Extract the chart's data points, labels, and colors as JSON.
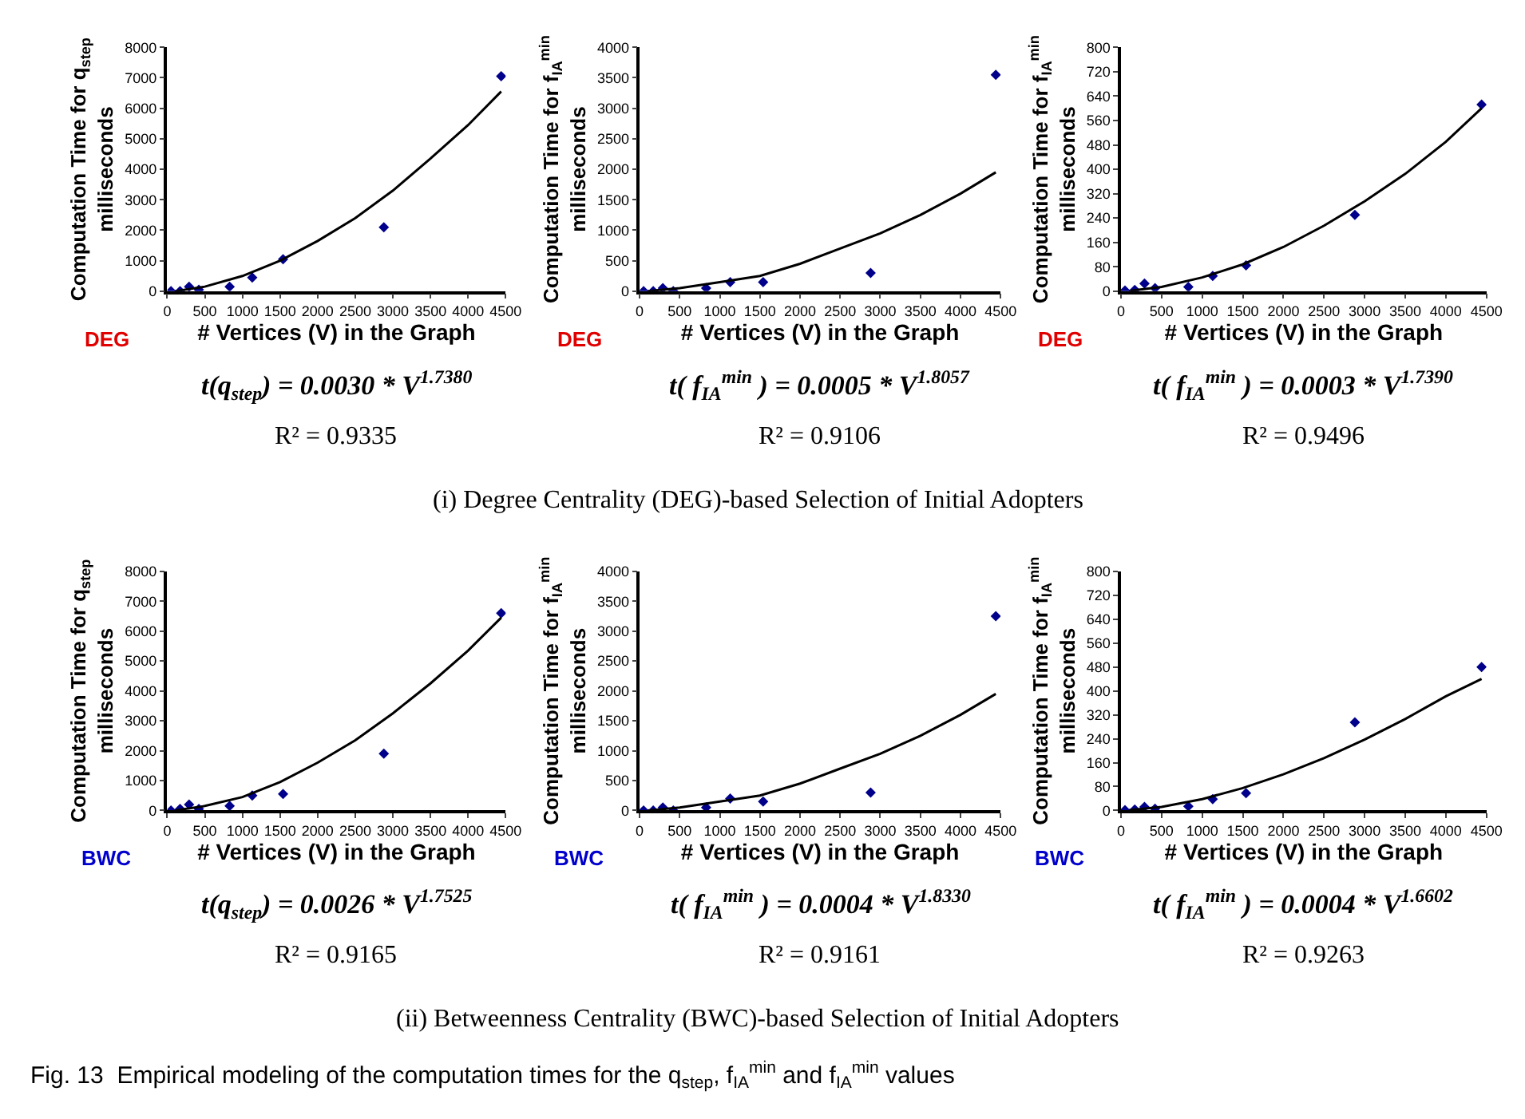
{
  "chart_data": [
    {
      "type": "scatter",
      "ylabel": "Computation Time for q$_{step}$\nmilliseconds",
      "xlabel": "# Vertices (V) in the Graph",
      "xlim": [
        0,
        4500
      ],
      "xticks": [
        0,
        500,
        1000,
        1500,
        2000,
        2500,
        3000,
        3500,
        4000,
        4500
      ],
      "ylim": [
        0,
        8000
      ],
      "yticks": [
        0,
        1000,
        2000,
        3000,
        4000,
        5000,
        6000,
        7000,
        8000
      ],
      "marker": "diamond",
      "annotations": [
        "DEG",
        "t(q$_{step}$) = 0.0030 * V$^{1.7380}$",
        "R² = 0.9335"
      ],
      "series": [
        {
          "color": "#00008b",
          "x": [
            50,
            170,
            290,
            420,
            830,
            1130,
            1540,
            2880,
            4440
          ],
          "values": [
            0,
            0,
            150,
            50,
            150,
            450,
            1050,
            2100,
            7050
          ]
        },
        {
          "type": "line",
          "color": "#000000",
          "marker": "none",
          "line_style": "solid",
          "x": [
            100,
            500,
            1000,
            1500,
            2000,
            2500,
            3000,
            3500,
            4000,
            4440
          ],
          "values": [
            0,
            150,
            500,
            1000,
            1650,
            2400,
            3300,
            4350,
            5450,
            6550
          ]
        }
      ]
    },
    {
      "type": "scatter",
      "ylabel": "Computation Time for f$_{IA}$$^{min}$\nmilliseconds",
      "xlabel": "# Vertices (V) in the Graph",
      "xlim": [
        0,
        4500
      ],
      "xticks": [
        0,
        500,
        1000,
        1500,
        2000,
        2500,
        3000,
        3500,
        4000,
        4500
      ],
      "ylim": [
        0,
        4000
      ],
      "yticks": [
        0,
        500,
        1000,
        1500,
        2000,
        2500,
        3000,
        3500,
        4000
      ],
      "marker": "diamond",
      "annotations": [
        "DEG",
        "t( f$_{IA}$$^{min}$ ) = 0.0005 * V$^{1.8057}$",
        "R² = 0.9106",
        "(i) Degree Centrality (DEG)-based Selection of Initial Adopters"
      ],
      "series": [
        {
          "color": "#00008b",
          "x": [
            50,
            170,
            290,
            420,
            830,
            1130,
            1540,
            2880,
            4440
          ],
          "values": [
            0,
            0,
            50,
            0,
            50,
            150,
            150,
            300,
            3550
          ]
        },
        {
          "type": "line",
          "color": "#000000",
          "marker": "none",
          "line_style": "solid",
          "x": [
            100,
            500,
            1000,
            1500,
            2000,
            2500,
            3000,
            3500,
            4000,
            4440
          ],
          "values": [
            0,
            50,
            150,
            250,
            450,
            700,
            950,
            1250,
            1600,
            1950
          ]
        }
      ]
    },
    {
      "type": "scatter",
      "ylabel": "Computation Time for f$_{IA}$$^{min}$\nmilliseconds",
      "xlabel": "# Vertices (V) in the Graph",
      "xlim": [
        0,
        4500
      ],
      "xticks": [
        0,
        500,
        1000,
        1500,
        2000,
        2500,
        3000,
        3500,
        4000,
        4500
      ],
      "ylim": [
        0,
        800
      ],
      "yticks": [
        0,
        80,
        160,
        240,
        320,
        400,
        480,
        560,
        640,
        720,
        800
      ],
      "marker": "diamond",
      "annotations": [
        "DEG",
        "t( f$_{IA}$$^{min}$ ) = 0.0003 * V$^{1.7390}$",
        "R² = 0.9496"
      ],
      "series": [
        {
          "color": "#00008b",
          "x": [
            50,
            170,
            290,
            420,
            830,
            1130,
            1540,
            2880,
            4440
          ],
          "values": [
            2,
            4,
            25,
            10,
            14,
            50,
            85,
            250,
            612
          ]
        },
        {
          "type": "line",
          "color": "#000000",
          "marker": "none",
          "line_style": "solid",
          "x": [
            100,
            500,
            1000,
            1500,
            2000,
            2500,
            3000,
            3500,
            4000,
            4440
          ],
          "values": [
            1,
            14,
            45,
            88,
            145,
            215,
            295,
            385,
            490,
            600
          ]
        }
      ]
    },
    {
      "type": "scatter",
      "ylabel": "Computation Time for q$_{step}$\nmilliseconds",
      "xlabel": "# Vertices (V) in the Graph",
      "xlim": [
        0,
        4500
      ],
      "xticks": [
        0,
        500,
        1000,
        1500,
        2000,
        2500,
        3000,
        3500,
        4000,
        4500
      ],
      "ylim": [
        0,
        8000
      ],
      "yticks": [
        0,
        1000,
        2000,
        3000,
        4000,
        5000,
        6000,
        7000,
        8000
      ],
      "marker": "diamond",
      "annotations": [
        "BWC",
        "t(q$_{step}$) = 0.0026 * V$^{1.7525}$",
        "R² = 0.9165"
      ],
      "series": [
        {
          "color": "#00008b",
          "x": [
            50,
            170,
            290,
            420,
            830,
            1130,
            1540,
            2880,
            4440
          ],
          "values": [
            0,
            50,
            200,
            50,
            150,
            500,
            550,
            1900,
            6600
          ]
        },
        {
          "type": "line",
          "color": "#000000",
          "marker": "none",
          "line_style": "solid",
          "x": [
            100,
            500,
            1000,
            1500,
            2000,
            2500,
            3000,
            3500,
            4000,
            4440
          ],
          "values": [
            0,
            150,
            450,
            950,
            1600,
            2350,
            3250,
            4250,
            5350,
            6450
          ]
        }
      ]
    },
    {
      "type": "scatter",
      "ylabel": "Computation Time for f$_{IA}$$^{min}$\nmilliseconds",
      "xlabel": "# Vertices (V) in the Graph",
      "xlim": [
        0,
        4500
      ],
      "xticks": [
        0,
        500,
        1000,
        1500,
        2000,
        2500,
        3000,
        3500,
        4000,
        4500
      ],
      "ylim": [
        0,
        4000
      ],
      "yticks": [
        0,
        500,
        1000,
        1500,
        2000,
        2500,
        3000,
        3500,
        4000
      ],
      "marker": "diamond",
      "annotations": [
        "BWC",
        "t( f$_{IA}$$^{min}$ ) = 0.0004 * V$^{1.8330}$",
        "R² = 0.9161",
        "(ii) Betweenness Centrality (BWC)-based Selection of Initial Adopters",
        "Fig. 13  Empirical modeling of the computation times for the q$_{step}$, f$_{IA}$$^{min}$ and f$_{IA}$$^{min}$ values"
      ],
      "series": [
        {
          "color": "#00008b",
          "x": [
            50,
            170,
            290,
            420,
            830,
            1130,
            1540,
            2880,
            4440
          ],
          "values": [
            0,
            0,
            50,
            0,
            50,
            200,
            150,
            300,
            3250
          ]
        },
        {
          "type": "line",
          "color": "#000000",
          "marker": "none",
          "line_style": "solid",
          "x": [
            100,
            500,
            1000,
            1500,
            2000,
            2500,
            3000,
            3500,
            4000,
            4440
          ],
          "values": [
            0,
            50,
            150,
            250,
            450,
            700,
            950,
            1250,
            1600,
            1950
          ]
        }
      ]
    },
    {
      "type": "scatter",
      "ylabel": "Computation Time for f$_{IA}$$^{min}$\nmilliseconds",
      "xlabel": "# Vertices (V) in the Graph",
      "xlim": [
        0,
        4500
      ],
      "xticks": [
        0,
        500,
        1000,
        1500,
        2000,
        2500,
        3000,
        3500,
        4000,
        4500
      ],
      "ylim": [
        0,
        800
      ],
      "yticks": [
        0,
        80,
        160,
        240,
        320,
        400,
        480,
        560,
        640,
        720,
        800
      ],
      "marker": "diamond",
      "annotations": [
        "BWC",
        "t( f$_{IA}$$^{min}$ ) = 0.0004 * V$^{1.6602}$",
        "R² = 0.9263"
      ],
      "series": [
        {
          "color": "#00008b",
          "x": [
            50,
            170,
            290,
            420,
            830,
            1130,
            1540,
            2880,
            4440
          ],
          "values": [
            1,
            3,
            12,
            6,
            14,
            38,
            58,
            295,
            480
          ]
        },
        {
          "type": "line",
          "color": "#000000",
          "marker": "none",
          "line_style": "solid",
          "x": [
            100,
            500,
            1000,
            1500,
            2000,
            2500,
            3000,
            3500,
            4000,
            4440
          ],
          "values": [
            1,
            12,
            38,
            75,
            121,
            175,
            237,
            306,
            382,
            440
          ]
        }
      ]
    }
  ]
}
